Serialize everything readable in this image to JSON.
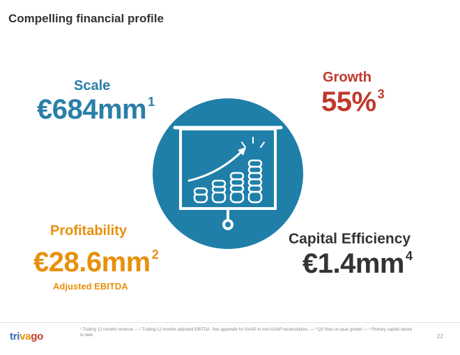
{
  "slide": {
    "title": "Compelling financial profile",
    "page_number": "22"
  },
  "metrics": {
    "scale": {
      "label": "Scale",
      "value": "€684mm",
      "footnote": "1",
      "color": "#2a7ea8"
    },
    "growth": {
      "label": "Growth",
      "value": "55%",
      "footnote": "3",
      "color": "#c0392b"
    },
    "profitability": {
      "label": "Profitability",
      "value": "€28.6mm",
      "footnote": "2",
      "sublabel": "Adjusted EBITDA",
      "color": "#e8900c"
    },
    "capital_efficiency": {
      "label": "Capital Efficiency",
      "value": "€1.4mm",
      "footnote": "4",
      "color": "#333333"
    }
  },
  "center_graphic": {
    "icon": "presentation-board-chart-icon",
    "circle_color": "#1f7fa9"
  },
  "footer": {
    "logo_parts": [
      "tri",
      "va",
      "go"
    ],
    "footnote": "¹ Trailing 12 months revenue — ² Trailing 12 months adjusted EBITDA. See appendix for GAAP to non-GAAP reconciliation. — ³ Q3 Year-on-year growth — ⁴ Primary capital raised to date"
  }
}
